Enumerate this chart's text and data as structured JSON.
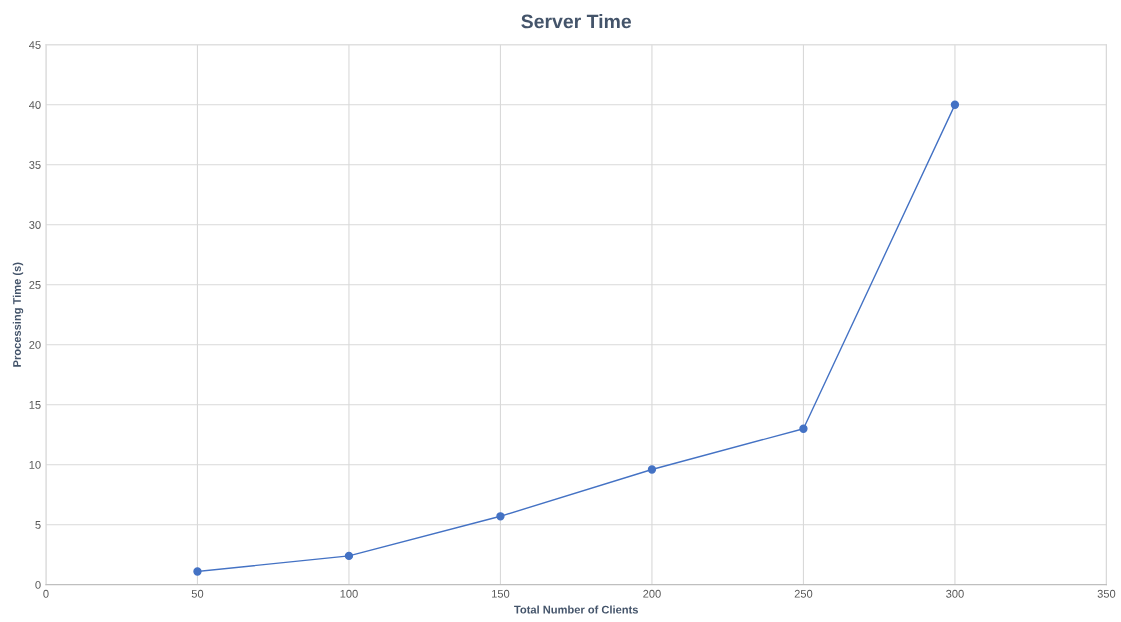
{
  "chart_data": {
    "type": "line",
    "title": "Server Time",
    "xlabel": "Total Number of Clients",
    "ylabel": "Processing Time (s)",
    "x": [
      50,
      100,
      150,
      200,
      250,
      300
    ],
    "series": [
      {
        "color": "#4472c4",
        "values": [
          1.1,
          2.4,
          5.7,
          9.6,
          13,
          40
        ]
      }
    ],
    "xlim": [
      0,
      350
    ],
    "xticks": [
      0,
      50,
      100,
      150,
      200,
      250,
      300,
      350
    ],
    "ylim": [
      0,
      45
    ],
    "yticks": [
      0,
      5,
      10,
      15,
      20,
      25,
      30,
      35,
      40,
      45
    ],
    "grid": true,
    "marker": "circle",
    "line_style": "solid"
  }
}
